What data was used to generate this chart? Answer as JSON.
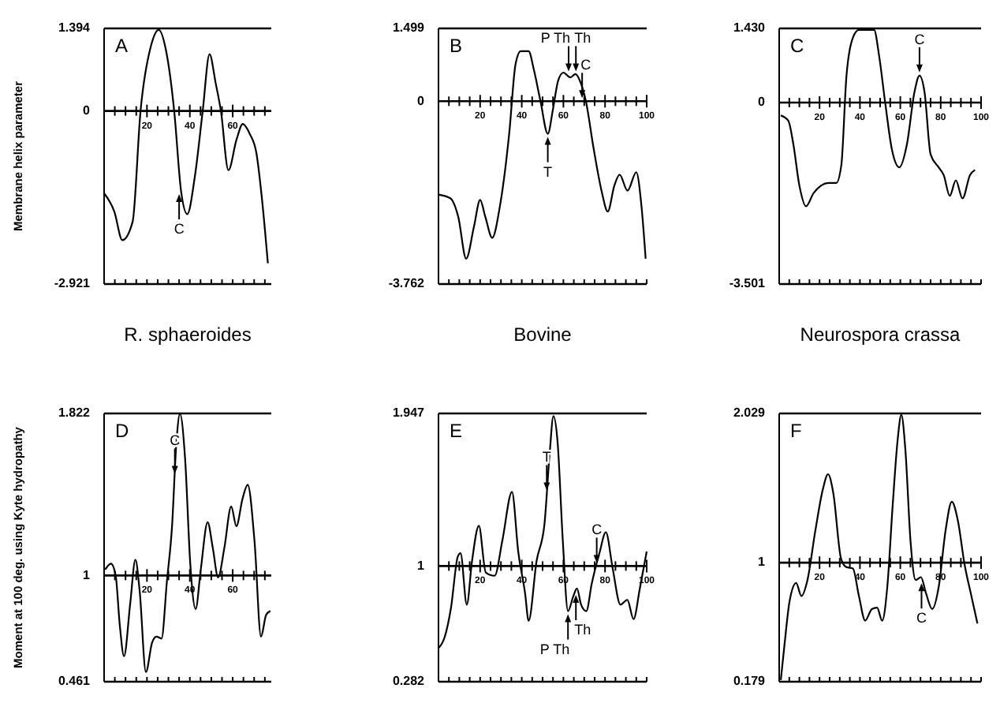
{
  "chart_data": [
    {
      "type": "line",
      "title": "A",
      "xlabel": "R. sphaeroides",
      "ylabel": "Membrane helix parameter",
      "color": "#000000",
      "xlim": [
        0,
        78
      ],
      "ylim": [
        -2.921,
        1.394
      ],
      "yticks": [
        -2.921,
        0,
        1.394
      ],
      "xticks": [
        {
          "value": 5,
          "label": null
        },
        {
          "value": 10,
          "label": null
        },
        {
          "value": 15,
          "label": null
        },
        20,
        {
          "value": 25,
          "label": null
        },
        {
          "value": 30,
          "label": null
        },
        {
          "value": 35,
          "label": null
        },
        40,
        {
          "value": 45,
          "label": null
        },
        {
          "value": 50,
          "label": null
        },
        {
          "value": 55,
          "label": null
        },
        60,
        {
          "value": 65,
          "label": null
        },
        {
          "value": 70,
          "label": null
        },
        {
          "value": 75,
          "label": null
        }
      ],
      "x": [
        0,
        4.8,
        8.5,
        13.3,
        17,
        21.8,
        25.5,
        29,
        32.7,
        35.9,
        38.8,
        42.4,
        46,
        49.2,
        52,
        54.5,
        58,
        61.8,
        64.7,
        68,
        71,
        74,
        76.4
      ],
      "values": [
        -1.39,
        -1.7,
        -2.18,
        -1.87,
        0,
        1.09,
        1.37,
        1.0,
        0,
        -1.35,
        -1.74,
        -1.09,
        0,
        0.96,
        0.48,
        0,
        -1.0,
        -0.48,
        -0.22,
        -0.39,
        -0.7,
        -1.61,
        -2.57
      ],
      "annotations": [
        {
          "text": "C",
          "x": 35,
          "y": -1.35
        }
      ]
    },
    {
      "type": "line",
      "title": "B",
      "xlabel": "Bovine",
      "color": "#000000",
      "xlim": [
        0,
        100
      ],
      "ylim": [
        -3.762,
        1.499
      ],
      "yticks": [
        -3.762,
        0,
        1.499
      ],
      "xticks": [
        {
          "value": 5,
          "label": null
        },
        {
          "value": 10,
          "label": null
        },
        {
          "value": 15,
          "label": null
        },
        20,
        {
          "value": 25,
          "label": null
        },
        {
          "value": 30,
          "label": null
        },
        {
          "value": 35,
          "label": null
        },
        40,
        {
          "value": 45,
          "label": null
        },
        {
          "value": 50,
          "label": null
        },
        {
          "value": 55,
          "label": null
        },
        60,
        {
          "value": 65,
          "label": null
        },
        {
          "value": 70,
          "label": null
        },
        {
          "value": 75,
          "label": null
        },
        80,
        {
          "value": 85,
          "label": null
        },
        {
          "value": 90,
          "label": null
        },
        {
          "value": 95,
          "label": null
        },
        100
      ],
      "x": [
        0,
        5.8,
        9.5,
        13.3,
        17,
        20,
        22.5,
        25.8,
        29.5,
        34,
        37,
        39.5,
        43.3,
        45.8,
        49,
        52.5,
        55,
        57.5,
        60,
        63.3,
        65.8,
        68.3,
        70.8,
        74.5,
        78.3,
        81.3,
        84.5,
        87,
        90.8,
        95,
        97.5,
        99.5
      ],
      "values": [
        -1.92,
        -2.0,
        -2.38,
        -3.24,
        -2.59,
        -2.03,
        -2.38,
        -2.81,
        -2.16,
        -0.65,
        0.76,
        1.03,
        1.03,
        0.65,
        0,
        -0.67,
        -0.16,
        0.43,
        0.59,
        0.49,
        0.56,
        0.38,
        0,
        -0.97,
        -1.84,
        -2.27,
        -1.73,
        -1.51,
        -1.84,
        -1.46,
        -2.16,
        -3.24
      ],
      "annotations": [
        {
          "text": "T",
          "x": 52.5,
          "y": -0.67
        },
        {
          "text": "P Th",
          "x": 62.5,
          "y": 0.55
        },
        {
          "text": "Th",
          "x": 66,
          "y": 0.55
        },
        {
          "text": "C",
          "x": 69,
          "y": 0
        }
      ]
    },
    {
      "type": "line",
      "title": "C",
      "xlabel": "Neurospora crassa",
      "color": "#000000",
      "xlim": [
        0,
        100
      ],
      "ylim": [
        -3.501,
        1.43
      ],
      "yticks": [
        -3.501,
        0,
        {
          "value": 1.43,
          "label": "1.430"
        }
      ],
      "xticks": [
        {
          "value": 5,
          "label": null
        },
        {
          "value": 10,
          "label": null
        },
        {
          "value": 15,
          "label": null
        },
        20,
        {
          "value": 25,
          "label": null
        },
        {
          "value": 30,
          "label": null
        },
        {
          "value": 35,
          "label": null
        },
        40,
        {
          "value": 45,
          "label": null
        },
        {
          "value": 50,
          "label": null
        },
        {
          "value": 55,
          "label": null
        },
        60,
        {
          "value": 65,
          "label": null
        },
        {
          "value": 70,
          "label": null
        },
        {
          "value": 75,
          "label": null
        },
        80,
        {
          "value": 85,
          "label": null
        },
        {
          "value": 90,
          "label": null
        },
        {
          "value": 95,
          "label": null
        },
        100
      ],
      "x": [
        0.8,
        4.5,
        7,
        10,
        13.3,
        17,
        20.8,
        24.5,
        28.3,
        30.8,
        33.3,
        36.5,
        39.5,
        47,
        49.5,
        52.5,
        55.8,
        59.5,
        63.3,
        67,
        69.5,
        72,
        75,
        79,
        81.5,
        84.5,
        87.5,
        90.8,
        94.5,
        97
      ],
      "values": [
        -0.25,
        -0.35,
        -0.8,
        -1.6,
        -2.0,
        -1.75,
        -1.6,
        -1.55,
        -1.55,
        -1.2,
        0.5,
        1.25,
        1.4,
        1.4,
        0.9,
        0,
        -0.9,
        -1.25,
        -0.8,
        0.2,
        0.52,
        0.2,
        -1.0,
        -1.25,
        -1.4,
        -1.8,
        -1.5,
        -1.85,
        -1.4,
        -1.3
      ],
      "annotations": [
        {
          "text": "C",
          "x": 69.5,
          "y": 0.52
        }
      ]
    },
    {
      "type": "line",
      "title": "D",
      "ylabel": "Moment at 100 deg. using Kyte hydropathy",
      "color": "#000000",
      "xlim": [
        0,
        78
      ],
      "ylim": [
        0.461,
        1.822
      ],
      "yticks": [
        0.461,
        1,
        1.822
      ],
      "xticks": [
        {
          "value": 5,
          "label": null
        },
        {
          "value": 10,
          "label": null
        },
        {
          "value": 15,
          "label": null
        },
        20,
        {
          "value": 25,
          "label": null
        },
        {
          "value": 30,
          "label": null
        },
        {
          "value": 35,
          "label": null
        },
        40,
        {
          "value": 45,
          "label": null
        },
        {
          "value": 50,
          "label": null
        },
        {
          "value": 55,
          "label": null
        },
        60,
        {
          "value": 65,
          "label": null
        },
        {
          "value": 70,
          "label": null
        },
        {
          "value": 75,
          "label": null
        }
      ],
      "x": [
        0.5,
        3.2,
        5.4,
        7.3,
        9.3,
        12.2,
        14.6,
        16.6,
        19.5,
        22.4,
        24.4,
        26.8,
        29.3,
        31.7,
        33.7,
        35.4,
        37.8,
        40.2,
        42.7,
        45.1,
        48.3,
        50.7,
        53.2,
        56.1,
        59.3,
        61.7,
        64.6,
        67,
        70.2,
        73.2,
        75.6,
        77.6
      ],
      "values": [
        1.03,
        1.06,
        1.0,
        0.75,
        0.59,
        0.86,
        1.08,
        0.92,
        0.51,
        0.66,
        0.69,
        0.68,
        0.97,
        1.25,
        1.67,
        1.82,
        1.59,
        1.06,
        0.83,
        1.03,
        1.27,
        1.14,
        0.99,
        1.14,
        1.35,
        1.25,
        1.39,
        1.46,
        1.17,
        0.69,
        0.8,
        0.82
      ],
      "annotations": [
        {
          "text": "C",
          "x": 33,
          "y": 1.5
        }
      ]
    },
    {
      "type": "line",
      "title": "E",
      "color": "#000000",
      "xlim": [
        0,
        100
      ],
      "ylim": [
        0.282,
        1.947
      ],
      "yticks": [
        0.282,
        1,
        1.947
      ],
      "xticks": [
        {
          "value": 5,
          "label": null
        },
        {
          "value": 10,
          "label": null
        },
        {
          "value": 15,
          "label": null
        },
        20,
        {
          "value": 25,
          "label": null
        },
        {
          "value": 30,
          "label": null
        },
        {
          "value": 35,
          "label": null
        },
        40,
        {
          "value": 45,
          "label": null
        },
        {
          "value": 50,
          "label": null
        },
        {
          "value": 55,
          "label": null
        },
        60,
        {
          "value": 65,
          "label": null
        },
        {
          "value": 70,
          "label": null
        },
        {
          "value": 75,
          "label": null
        },
        80,
        {
          "value": 85,
          "label": null
        },
        {
          "value": 90,
          "label": null
        },
        {
          "value": 95,
          "label": null
        },
        100
      ],
      "x": [
        0,
        3,
        6,
        9.3,
        10.6,
        13.6,
        16.1,
        19.4,
        22.7,
        27,
        30.7,
        35.3,
        38.3,
        41.6,
        43.3,
        47.1,
        50.9,
        53.4,
        55.2,
        57.2,
        59.7,
        62.2,
        64.7,
        66.5,
        68.5,
        71,
        73.6,
        77.3,
        80.4,
        83.6,
        87.4,
        90.7,
        93.7,
        96.7,
        100
      ],
      "values": [
        0.49,
        0.56,
        0.74,
        1.06,
        1.08,
        0.76,
        1.03,
        1.25,
        0.96,
        0.94,
        1.16,
        1.46,
        1.09,
        0.83,
        0.66,
        1.03,
        1.26,
        1.7,
        1.93,
        1.77,
        1.16,
        0.72,
        0.81,
        0.86,
        0.76,
        0.72,
        0.89,
        1.08,
        1.21,
        0.99,
        0.76,
        0.79,
        0.67,
        0.86,
        1.09
      ],
      "annotations": [
        {
          "text": "T",
          "x": 52,
          "y": 1.45
        },
        {
          "text": "C",
          "x": 76,
          "y": 1.0
        },
        {
          "text": "Th",
          "x": 66,
          "y": 0.84
        },
        {
          "text": "P Th",
          "x": 62.2,
          "y": 0.72
        }
      ]
    },
    {
      "type": "line",
      "title": "F",
      "color": "#000000",
      "xlim": [
        0,
        100
      ],
      "ylim": [
        0.179,
        2.029
      ],
      "yticks": [
        0.179,
        1,
        2.029
      ],
      "xticks": [
        {
          "value": 5,
          "label": null
        },
        {
          "value": 10,
          "label": null
        },
        {
          "value": 15,
          "label": null
        },
        20,
        {
          "value": 25,
          "label": null
        },
        {
          "value": 30,
          "label": null
        },
        {
          "value": 35,
          "label": null
        },
        40,
        {
          "value": 45,
          "label": null
        },
        {
          "value": 50,
          "label": null
        },
        {
          "value": 55,
          "label": null
        },
        60,
        {
          "value": 65,
          "label": null
        },
        {
          "value": 70,
          "label": null
        },
        {
          "value": 75,
          "label": null
        },
        80,
        {
          "value": 85,
          "label": null
        },
        {
          "value": 90,
          "label": null
        },
        {
          "value": 95,
          "label": null
        },
        100
      ],
      "x": [
        0.8,
        2.6,
        5.1,
        8.4,
        11,
        14,
        17.9,
        21.7,
        24.2,
        26.8,
        30.6,
        33.2,
        36.5,
        39.5,
        42.6,
        45.9,
        48.5,
        51,
        53.6,
        56.1,
        58.7,
        60.5,
        62.5,
        65.1,
        67.6,
        70.2,
        72.7,
        75.8,
        79.1,
        82.4,
        85.5,
        88.5,
        91.8,
        95.2,
        98.2
      ],
      "values": [
        0.19,
        0.43,
        0.73,
        0.86,
        0.77,
        0.88,
        1.22,
        1.51,
        1.61,
        1.48,
        1.03,
        0.97,
        0.96,
        0.77,
        0.6,
        0.68,
        0.69,
        0.6,
        0.84,
        1.37,
        1.85,
        2.02,
        1.78,
        1.14,
        0.88,
        0.9,
        0.79,
        0.68,
        0.84,
        1.22,
        1.42,
        1.29,
        0.99,
        0.77,
        0.58
      ],
      "annotations": [
        {
          "text": "C",
          "x": 70.5,
          "y": 0.88
        }
      ]
    }
  ]
}
